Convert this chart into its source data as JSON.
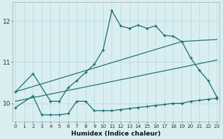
{
  "xlabel": "Humidex (Indice chaleur)",
  "background_color": "#d8eef1",
  "grid_color": "#b8d8dc",
  "line_color": "#1a6b6b",
  "xlim": [
    -0.3,
    23.3
  ],
  "ylim": [
    9.55,
    12.45
  ],
  "yticks": [
    10,
    11,
    12
  ],
  "xticks": [
    0,
    1,
    2,
    3,
    4,
    5,
    6,
    7,
    8,
    9,
    10,
    11,
    12,
    13,
    14,
    15,
    16,
    17,
    18,
    19,
    20,
    21,
    22,
    23
  ],
  "line_main": {
    "x": [
      0,
      2,
      4,
      5,
      6,
      7,
      8,
      9,
      10,
      11,
      12,
      13,
      14,
      15,
      16,
      17,
      18,
      19,
      20,
      21,
      22,
      23
    ],
    "y": [
      10.28,
      10.72,
      10.05,
      10.05,
      10.38,
      10.55,
      10.75,
      10.95,
      11.3,
      12.25,
      11.88,
      11.82,
      11.9,
      11.82,
      11.88,
      11.65,
      11.63,
      11.5,
      11.1,
      10.8,
      10.55,
      10.15
    ]
  },
  "line_upper_straight": {
    "x": [
      0,
      19,
      23
    ],
    "y": [
      10.28,
      11.5,
      11.55
    ]
  },
  "line_lower_straight": {
    "x": [
      0,
      23
    ],
    "y": [
      10.05,
      11.05
    ]
  },
  "line_bottom": {
    "x": [
      0,
      2,
      3,
      4,
      5,
      6,
      7,
      8,
      9,
      10,
      11,
      12,
      13,
      14,
      15,
      16,
      17,
      18,
      19,
      20,
      21,
      22,
      23
    ],
    "y": [
      9.9,
      10.18,
      9.72,
      9.72,
      9.72,
      9.75,
      10.05,
      10.05,
      9.82,
      9.82,
      9.82,
      9.85,
      9.87,
      9.9,
      9.92,
      9.95,
      9.97,
      10.0,
      10.0,
      10.05,
      10.07,
      10.1,
      10.12
    ]
  }
}
